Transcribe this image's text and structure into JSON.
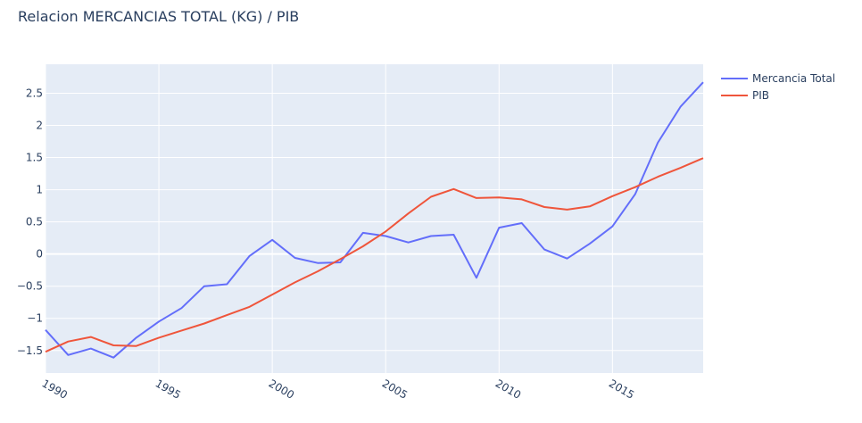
{
  "chart_data": {
    "type": "line",
    "title": "Relacion MERCANCIAS TOTAL (KG) / PIB",
    "xlabel": "",
    "ylabel": "",
    "xlim": [
      1990,
      2019
    ],
    "ylim": [
      -1.85,
      2.95
    ],
    "x_ticks": [
      1990,
      1995,
      2000,
      2005,
      2010,
      2015
    ],
    "y_ticks": [
      2.5,
      2,
      1.5,
      1,
      0.5,
      0,
      -0.5,
      -1,
      -1.5
    ],
    "y_tick_labels": [
      "2.5",
      "2",
      "1.5",
      "1",
      "0.5",
      "0",
      "−0.5",
      "−1",
      "−1.5"
    ],
    "x": [
      1990,
      1991,
      1992,
      1993,
      1994,
      1995,
      1996,
      1997,
      1998,
      1999,
      2000,
      2001,
      2002,
      2003,
      2004,
      2005,
      2006,
      2007,
      2008,
      2009,
      2010,
      2011,
      2012,
      2013,
      2014,
      2015,
      2016,
      2017,
      2018,
      2019
    ],
    "series": [
      {
        "name": "Mercancia Total",
        "color": "#636efa",
        "values": [
          -1.18,
          -1.57,
          -1.47,
          -1.61,
          -1.3,
          -1.05,
          -0.84,
          -0.5,
          -0.47,
          -0.03,
          0.22,
          -0.06,
          -0.14,
          -0.13,
          0.33,
          0.28,
          0.18,
          0.28,
          0.3,
          -0.37,
          0.41,
          0.48,
          0.07,
          -0.07,
          0.16,
          0.43,
          0.93,
          1.73,
          2.29,
          2.67
        ]
      },
      {
        "name": "PIB",
        "color": "#ef553b",
        "values": [
          -1.52,
          -1.36,
          -1.29,
          -1.42,
          -1.43,
          -1.3,
          -1.19,
          -1.08,
          -0.95,
          -0.82,
          -0.63,
          -0.44,
          -0.27,
          -0.08,
          0.12,
          0.35,
          0.63,
          0.89,
          1.01,
          0.87,
          0.88,
          0.85,
          0.73,
          0.69,
          0.74,
          0.9,
          1.04,
          1.2,
          1.34,
          1.49
        ]
      }
    ],
    "legend": "top-right"
  }
}
